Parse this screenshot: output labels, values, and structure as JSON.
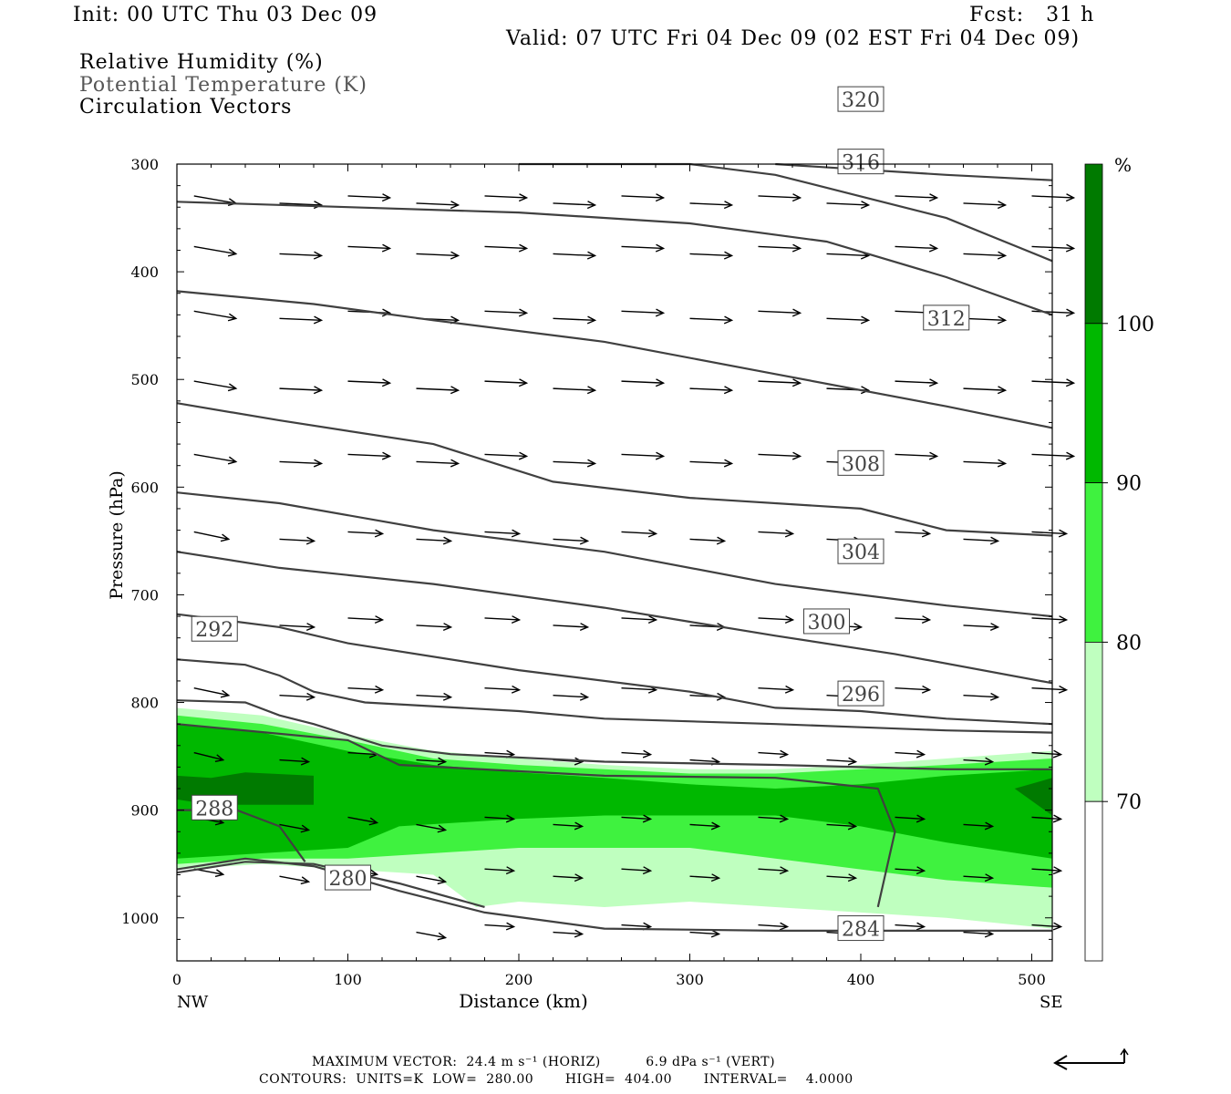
{
  "header": {
    "init": "Init: 00 UTC Thu 03 Dec 09",
    "fcst": "Fcst:   31 h",
    "valid": "Valid: 07 UTC Fri 04 Dec 09 (02 EST Fri 04 Dec 09)"
  },
  "fields": {
    "rh": "Relative Humidity (%)",
    "theta": "Potential Temperature (K)",
    "vectors": "Circulation Vectors"
  },
  "colors": {
    "rh_70_80": "#bfffbf",
    "rh_80_90": "#3ff23f",
    "rh_90_100": "#00b800",
    "rh_100": "#007a00",
    "contour": "#404040"
  },
  "chart_data": {
    "type": "cross-section",
    "xlabel": "Distance (km)",
    "ylabel": "Pressure (hPa)",
    "xlim": [
      0,
      512
    ],
    "ylim": [
      1040,
      300
    ],
    "y_scale": "linear",
    "x_ticks": [
      "0",
      "100",
      "200",
      "300",
      "400",
      "500"
    ],
    "x_tick_values": [
      0,
      100,
      200,
      300,
      400,
      500
    ],
    "y_ticks": [
      "300",
      "400",
      "500",
      "600",
      "700",
      "800",
      "900",
      "1000"
    ],
    "y_tick_values": [
      300,
      400,
      500,
      600,
      700,
      800,
      900,
      1000
    ],
    "endpoints": {
      "left": "NW",
      "right": "SE"
    },
    "colorbar": {
      "unit": "%",
      "levels": [
        "70",
        "80",
        "90",
        "100"
      ],
      "level_values": [
        70,
        80,
        90,
        100
      ]
    },
    "rh_bands": [
      {
        "range": "70-80",
        "lower_hpa": [
          [
            0,
            955
          ],
          [
            50,
            950
          ],
          [
            100,
            955
          ],
          [
            150,
            960
          ],
          [
            175,
            990
          ],
          [
            200,
            985
          ],
          [
            250,
            990
          ],
          [
            300,
            985
          ],
          [
            350,
            990
          ],
          [
            400,
            995
          ],
          [
            450,
            1000
          ],
          [
            512,
            1010
          ]
        ],
        "upper_hpa": [
          [
            0,
            805
          ],
          [
            50,
            812
          ],
          [
            100,
            830
          ],
          [
            150,
            845
          ],
          [
            200,
            852
          ],
          [
            250,
            858
          ],
          [
            300,
            862
          ],
          [
            350,
            862
          ],
          [
            400,
            858
          ],
          [
            450,
            852
          ],
          [
            512,
            845
          ]
        ]
      },
      {
        "range": "80-90",
        "lower_hpa": [
          [
            0,
            950
          ],
          [
            50,
            945
          ],
          [
            100,
            945
          ],
          [
            150,
            940
          ],
          [
            200,
            935
          ],
          [
            250,
            935
          ],
          [
            300,
            935
          ],
          [
            350,
            945
          ],
          [
            400,
            955
          ],
          [
            450,
            965
          ],
          [
            512,
            972
          ]
        ],
        "upper_hpa": [
          [
            0,
            812
          ],
          [
            50,
            820
          ],
          [
            100,
            835
          ],
          [
            150,
            852
          ],
          [
            200,
            858
          ],
          [
            250,
            862
          ],
          [
            300,
            866
          ],
          [
            350,
            866
          ],
          [
            400,
            862
          ],
          [
            450,
            858
          ],
          [
            512,
            852
          ]
        ]
      },
      {
        "range": "90-100",
        "lower_hpa": [
          [
            0,
            945
          ],
          [
            50,
            940
          ],
          [
            100,
            935
          ],
          [
            130,
            915
          ],
          [
            200,
            908
          ],
          [
            250,
            905
          ],
          [
            300,
            905
          ],
          [
            350,
            905
          ],
          [
            400,
            915
          ],
          [
            450,
            930
          ],
          [
            512,
            945
          ]
        ],
        "upper_hpa": [
          [
            0,
            820
          ],
          [
            50,
            828
          ],
          [
            100,
            845
          ],
          [
            150,
            858
          ],
          [
            200,
            865
          ],
          [
            250,
            870
          ],
          [
            300,
            876
          ],
          [
            350,
            880
          ],
          [
            400,
            876
          ],
          [
            450,
            868
          ],
          [
            512,
            862
          ]
        ]
      },
      {
        "range": "100",
        "patches": [
          {
            "polygon": [
              [
                0,
                868
              ],
              [
                20,
                870
              ],
              [
                40,
                865
              ],
              [
                80,
                868
              ],
              [
                80,
                895
              ],
              [
                40,
                895
              ],
              [
                20,
                895
              ],
              [
                0,
                890
              ]
            ]
          },
          {
            "polygon": [
              [
                490,
                880
              ],
              [
                512,
                870
              ],
              [
                512,
                905
              ]
            ]
          }
        ]
      }
    ],
    "theta_contours": [
      {
        "level": "280",
        "label": "280",
        "label_at": [
          100,
          963
        ],
        "points": [
          [
            0,
            958
          ],
          [
            40,
            948
          ],
          [
            80,
            950
          ],
          [
            130,
            968
          ],
          [
            180,
            990
          ]
        ]
      },
      {
        "level": "284",
        "label": "284",
        "label_at": [
          400,
          1010
        ],
        "points": [
          [
            0,
            955
          ],
          [
            40,
            945
          ],
          [
            80,
            952
          ],
          [
            130,
            975
          ],
          [
            180,
            995
          ],
          [
            250,
            1010
          ],
          [
            350,
            1012
          ],
          [
            512,
            1012
          ]
        ]
      },
      {
        "level": "288",
        "label": "288",
        "label_at": [
          22,
          898
        ],
        "points": [
          [
            0,
            900
          ],
          [
            35,
            900
          ],
          [
            60,
            915
          ],
          [
            75,
            948
          ]
        ]
      },
      {
        "level": "288b",
        "label": "",
        "points": [
          [
            0,
            820
          ],
          [
            100,
            835
          ],
          [
            130,
            858
          ],
          [
            250,
            868
          ],
          [
            350,
            870
          ],
          [
            410,
            880
          ],
          [
            420,
            920
          ],
          [
            410,
            990
          ]
        ]
      },
      {
        "level": "292",
        "label": "292",
        "label_at": [
          22,
          732
        ],
        "points": [
          [
            0,
            798
          ],
          [
            40,
            800
          ],
          [
            60,
            812
          ],
          [
            80,
            820
          ],
          [
            120,
            840
          ],
          [
            160,
            848
          ],
          [
            250,
            855
          ],
          [
            350,
            858
          ],
          [
            450,
            862
          ],
          [
            512,
            862
          ]
        ]
      },
      {
        "level": "292b",
        "label": "",
        "points": [
          [
            0,
            760
          ],
          [
            40,
            765
          ],
          [
            60,
            775
          ],
          [
            80,
            790
          ],
          [
            110,
            800
          ],
          [
            200,
            808
          ],
          [
            250,
            815
          ],
          [
            350,
            820
          ],
          [
            400,
            823
          ],
          [
            450,
            826
          ],
          [
            512,
            828
          ]
        ]
      },
      {
        "level": "296",
        "label": "296",
        "label_at": [
          400,
          792
        ],
        "points": [
          [
            0,
            718
          ],
          [
            60,
            730
          ],
          [
            100,
            745
          ],
          [
            200,
            770
          ],
          [
            300,
            790
          ],
          [
            350,
            805
          ],
          [
            400,
            808
          ],
          [
            450,
            815
          ],
          [
            512,
            820
          ]
        ]
      },
      {
        "level": "300",
        "label": "300",
        "label_at": [
          380,
          725
        ],
        "points": [
          [
            0,
            660
          ],
          [
            60,
            675
          ],
          [
            150,
            690
          ],
          [
            250,
            712
          ],
          [
            300,
            725
          ],
          [
            350,
            738
          ],
          [
            420,
            755
          ],
          [
            512,
            782
          ]
        ]
      },
      {
        "level": "304",
        "label": "304",
        "label_at": [
          400,
          660
        ],
        "points": [
          [
            0,
            605
          ],
          [
            60,
            615
          ],
          [
            150,
            640
          ],
          [
            250,
            660
          ],
          [
            350,
            690
          ],
          [
            450,
            710
          ],
          [
            512,
            720
          ]
        ]
      },
      {
        "level": "308",
        "label": "308",
        "label_at": [
          400,
          578
        ],
        "points": [
          [
            0,
            522
          ],
          [
            60,
            538
          ],
          [
            150,
            560
          ],
          [
            220,
            595
          ],
          [
            300,
            610
          ],
          [
            400,
            620
          ],
          [
            450,
            640
          ],
          [
            512,
            645
          ]
        ]
      },
      {
        "level": "312",
        "label": "312",
        "label_at": [
          450,
          443
        ],
        "points": [
          [
            0,
            418
          ],
          [
            80,
            430
          ],
          [
            150,
            445
          ],
          [
            250,
            465
          ],
          [
            350,
            495
          ],
          [
            450,
            525
          ],
          [
            512,
            545
          ]
        ]
      },
      {
        "level": "316",
        "label": "316",
        "label_at": [
          400,
          298
        ],
        "points": [
          [
            0,
            335
          ],
          [
            100,
            340
          ],
          [
            200,
            345
          ],
          [
            300,
            355
          ],
          [
            380,
            372
          ],
          [
            450,
            405
          ],
          [
            512,
            440
          ]
        ]
      },
      {
        "level": "320",
        "label": "320",
        "label_at": [
          400,
          240
        ],
        "points": [
          [
            200,
            300
          ],
          [
            300,
            300
          ],
          [
            350,
            310
          ],
          [
            400,
            330
          ],
          [
            450,
            350
          ],
          [
            512,
            390
          ]
        ]
      },
      {
        "level": "324",
        "label": "",
        "points": [
          [
            350,
            300
          ],
          [
            450,
            310
          ],
          [
            512,
            315
          ]
        ]
      }
    ],
    "vector_rows_hpa": [
      333,
      380,
      440,
      505,
      573,
      645,
      725,
      790,
      850,
      910,
      958,
      1010
    ],
    "vector_cols_km": [
      10,
      60,
      100,
      140,
      180,
      220,
      260,
      300,
      340,
      380,
      420,
      460,
      500
    ]
  },
  "footer": {
    "max_vector": "MAXIMUM VECTOR:  24.4 m s⁻¹ (HORIZ)          6.9 dPa s⁻¹ (VERT)",
    "contours": "CONTOURS:  UNITS=K  LOW=  280.00       HIGH=  404.00       INTERVAL=    4.0000"
  }
}
